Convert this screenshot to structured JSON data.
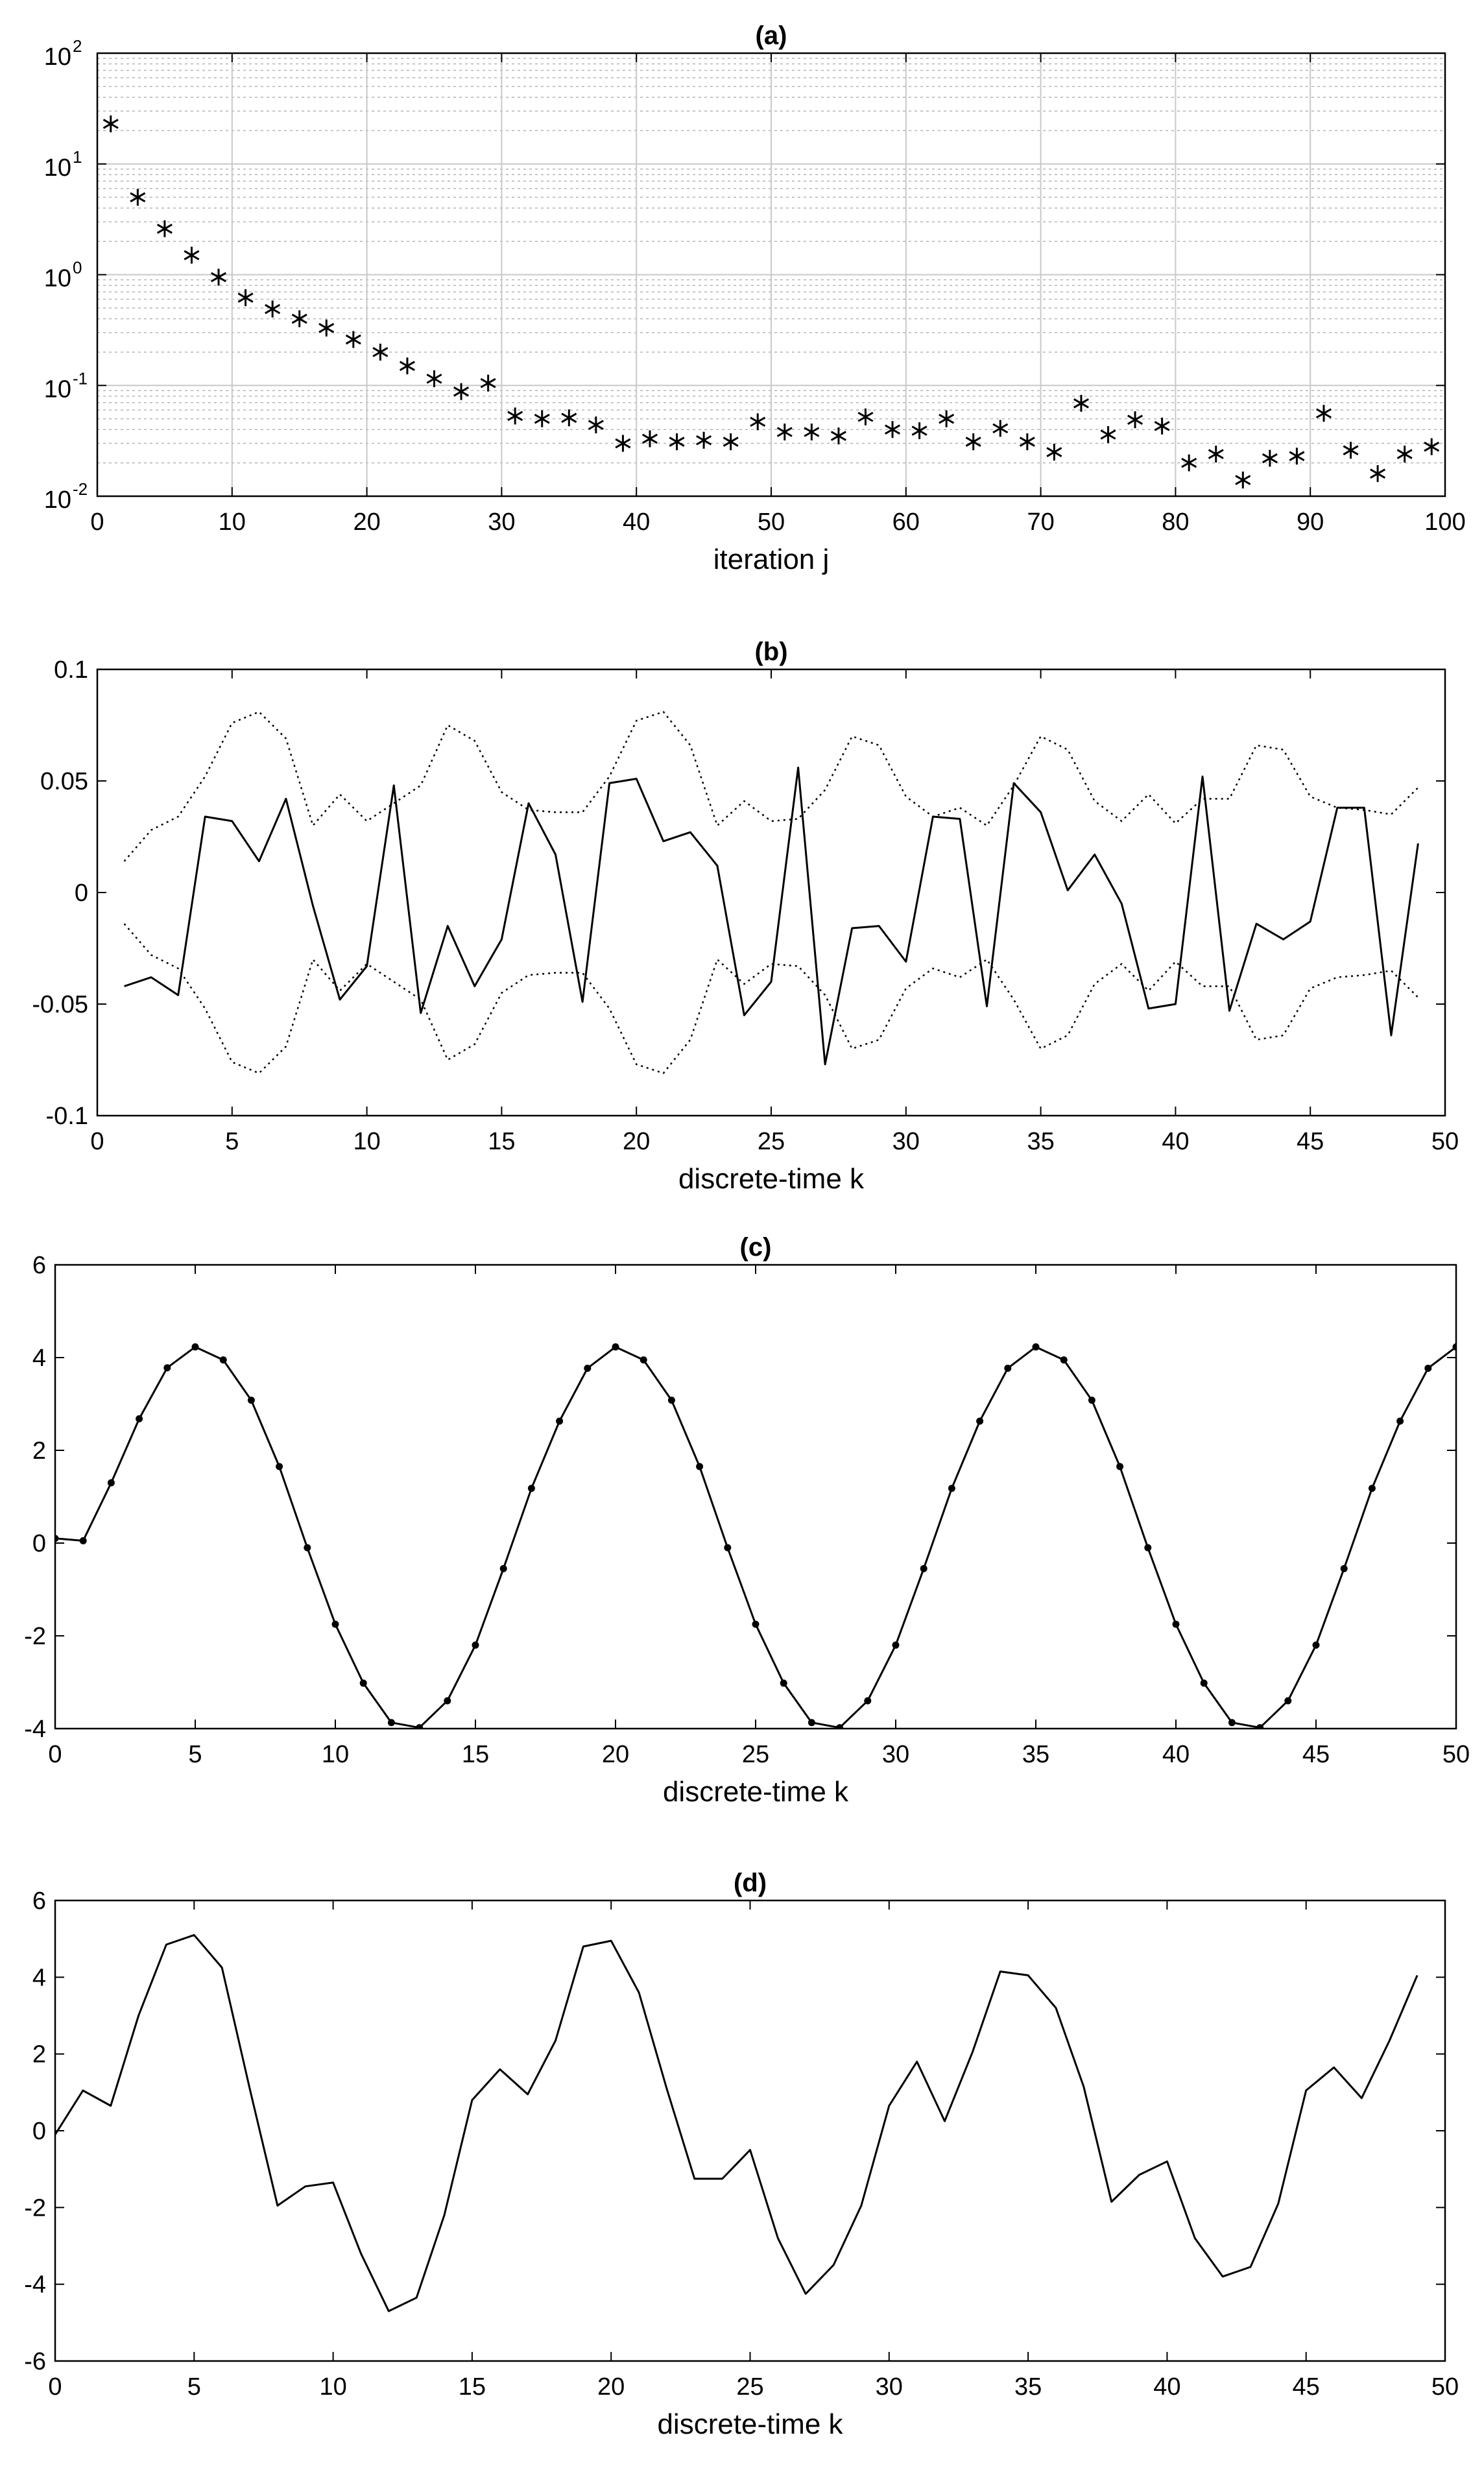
{
  "chart_data": [
    {
      "type": "scatter",
      "title": "(a)",
      "xlabel": "iteration j",
      "ylabel": "",
      "xlim": [
        0,
        100
      ],
      "ylim": [
        0.01,
        100
      ],
      "yscale": "log",
      "grid": true,
      "marker": "*",
      "xticks": [
        "0",
        "10",
        "20",
        "30",
        "40",
        "50",
        "60",
        "70",
        "80",
        "90",
        "100"
      ],
      "yticks": [
        {
          "base": "10",
          "exp": "-2"
        },
        {
          "base": "10",
          "exp": "-1"
        },
        {
          "base": "10",
          "exp": "0"
        },
        {
          "base": "10",
          "exp": "1"
        },
        {
          "base": "10",
          "exp": "2"
        }
      ],
      "x": [
        1,
        3,
        5,
        7,
        9,
        11,
        13,
        15,
        17,
        19,
        21,
        23,
        25,
        27,
        29,
        31,
        33,
        35,
        37,
        39,
        41,
        43,
        45,
        47,
        49,
        51,
        53,
        55,
        57,
        59,
        61,
        63,
        65,
        67,
        69,
        71,
        73,
        75,
        77,
        79,
        81,
        83,
        85,
        87,
        89,
        91,
        93,
        95,
        97,
        99
      ],
      "y": [
        23,
        5,
        2.6,
        1.5,
        0.95,
        0.62,
        0.49,
        0.4,
        0.33,
        0.26,
        0.2,
        0.15,
        0.115,
        0.088,
        0.105,
        0.053,
        0.05,
        0.051,
        0.044,
        0.03,
        0.033,
        0.031,
        0.032,
        0.031,
        0.047,
        0.038,
        0.038,
        0.035,
        0.052,
        0.04,
        0.039,
        0.05,
        0.031,
        0.041,
        0.031,
        0.025,
        0.069,
        0.036,
        0.049,
        0.043,
        0.02,
        0.024,
        0.014,
        0.022,
        0.023,
        0.056,
        0.026,
        0.016,
        0.024,
        0.028
      ]
    },
    {
      "type": "line",
      "title": "(b)",
      "xlabel": "discrete-time k",
      "ylabel": "",
      "xlim": [
        0,
        50
      ],
      "ylim": [
        -0.1,
        0.1
      ],
      "grid": false,
      "xticks": [
        "0",
        "5",
        "10",
        "15",
        "20",
        "25",
        "30",
        "35",
        "40",
        "45",
        "50"
      ],
      "yticks": [
        "-0.1",
        "-0.05",
        "0",
        "0.05",
        "0.1"
      ],
      "x": [
        1,
        2,
        3,
        4,
        5,
        6,
        7,
        8,
        9,
        10,
        11,
        12,
        13,
        14,
        15,
        16,
        17,
        18,
        19,
        20,
        21,
        22,
        23,
        24,
        25,
        26,
        27,
        28,
        29,
        30,
        31,
        32,
        33,
        34,
        35,
        36,
        37,
        38,
        39,
        40,
        41,
        42,
        43,
        44,
        45,
        46,
        47,
        48,
        49
      ],
      "series": [
        {
          "style": "solid",
          "values": [
            -0.042,
            -0.038,
            -0.046,
            0.034,
            0.032,
            0.014,
            0.042,
            -0.006,
            -0.048,
            -0.033,
            0.048,
            -0.054,
            -0.015,
            -0.042,
            -0.021,
            0.04,
            0.017,
            -0.049,
            0.049,
            0.051,
            0.023,
            0.027,
            0.012,
            -0.055,
            -0.04,
            0.056,
            -0.077,
            -0.016,
            -0.015,
            -0.031,
            0.034,
            0.033,
            -0.051,
            0.049,
            0.036,
            0.001,
            0.017,
            -0.005,
            -0.052,
            -0.05,
            0.052,
            -0.053,
            -0.014,
            -0.021,
            -0.013,
            0.038,
            0.038,
            -0.064,
            0.022
          ]
        },
        {
          "style": "dotted",
          "values": [
            0.014,
            0.028,
            0.034,
            0.052,
            0.076,
            0.081,
            0.069,
            0.03,
            0.044,
            0.032,
            0.04,
            0.048,
            0.075,
            0.068,
            0.045,
            0.037,
            0.036,
            0.036,
            0.052,
            0.077,
            0.081,
            0.066,
            0.03,
            0.041,
            0.032,
            0.033,
            0.046,
            0.07,
            0.066,
            0.043,
            0.034,
            0.038,
            0.03,
            0.048,
            0.07,
            0.064,
            0.041,
            0.032,
            0.044,
            0.031,
            0.042,
            0.042,
            0.066,
            0.064,
            0.043,
            0.038,
            0.037,
            0.035,
            0.047
          ]
        },
        {
          "style": "dotted",
          "values": [
            -0.014,
            -0.028,
            -0.034,
            -0.052,
            -0.076,
            -0.081,
            -0.069,
            -0.03,
            -0.044,
            -0.032,
            -0.04,
            -0.048,
            -0.075,
            -0.068,
            -0.045,
            -0.037,
            -0.036,
            -0.036,
            -0.052,
            -0.077,
            -0.081,
            -0.066,
            -0.03,
            -0.041,
            -0.032,
            -0.033,
            -0.046,
            -0.07,
            -0.066,
            -0.043,
            -0.034,
            -0.038,
            -0.03,
            -0.048,
            -0.07,
            -0.064,
            -0.041,
            -0.032,
            -0.044,
            -0.031,
            -0.042,
            -0.042,
            -0.066,
            -0.064,
            -0.043,
            -0.038,
            -0.037,
            -0.035,
            -0.047
          ]
        }
      ]
    },
    {
      "type": "line",
      "title": "(c)",
      "xlabel": "discrete-time k",
      "ylabel": "",
      "xlim": [
        0,
        50
      ],
      "ylim": [
        -4,
        6
      ],
      "grid": false,
      "xticks": [
        "0",
        "5",
        "10",
        "15",
        "20",
        "25",
        "30",
        "35",
        "40",
        "45",
        "50"
      ],
      "yticks": [
        "-4",
        "-2",
        "0",
        "2",
        "4",
        "6"
      ],
      "x": [
        0,
        1,
        2,
        3,
        4,
        5,
        6,
        7,
        8,
        9,
        10,
        11,
        12,
        13,
        14,
        15,
        16,
        17,
        18,
        19,
        20,
        21,
        22,
        23,
        24,
        25,
        26,
        27,
        28,
        29,
        30,
        31,
        32,
        33,
        34,
        35,
        36,
        37,
        38,
        39,
        40,
        41,
        42,
        43,
        44,
        45,
        46,
        47,
        48,
        49,
        50
      ],
      "series": [
        {
          "style": "solid-dots",
          "values": [
            0.1,
            0.05,
            1.3,
            2.68,
            3.78,
            4.23,
            3.95,
            3.08,
            1.65,
            -0.1,
            -1.75,
            -3.02,
            -3.87,
            -3.98,
            -3.4,
            -2.2,
            -0.55,
            1.18,
            2.63,
            3.77,
            4.23,
            3.95,
            3.08,
            1.65,
            -0.1,
            -1.75,
            -3.02,
            -3.87,
            -3.98,
            -3.4,
            -2.2,
            -0.55,
            1.18,
            2.63,
            3.77,
            4.23,
            3.95,
            3.08,
            1.65,
            -0.1,
            -1.75,
            -3.02,
            -3.87,
            -3.98,
            -3.4,
            -2.2,
            -0.55,
            1.18,
            2.63,
            3.77,
            4.23
          ]
        },
        {
          "style": "dotted",
          "values": [
            0.1,
            0.05,
            1.3,
            2.68,
            3.78,
            4.23,
            3.95,
            3.08,
            1.65,
            -0.1,
            -1.75,
            -3.02,
            -3.87,
            -3.98,
            -3.4,
            -2.2,
            -0.55,
            1.18,
            2.63,
            3.77,
            4.23,
            3.95,
            3.08,
            1.65,
            -0.1,
            -1.75,
            -3.02,
            -3.87,
            -3.98,
            -3.4,
            -2.2,
            -0.55,
            1.18,
            2.63,
            3.77,
            4.23,
            3.95,
            3.08,
            1.65,
            -0.1,
            -1.75,
            -3.02,
            -3.87,
            -3.98,
            -3.4,
            -2.2,
            -0.55,
            1.18,
            2.63,
            3.77,
            4.23
          ]
        }
      ]
    },
    {
      "type": "line",
      "title": "(d)",
      "xlabel": "discrete-time k",
      "ylabel": "",
      "xlim": [
        0,
        50
      ],
      "ylim": [
        -6,
        6
      ],
      "grid": false,
      "xticks": [
        "0",
        "5",
        "10",
        "15",
        "20",
        "25",
        "30",
        "35",
        "40",
        "45",
        "50"
      ],
      "yticks": [
        "-6",
        "-4",
        "-2",
        "0",
        "2",
        "4",
        "6"
      ],
      "x": [
        0,
        1,
        2,
        3,
        4,
        5,
        6,
        7,
        8,
        9,
        10,
        11,
        12,
        13,
        14,
        15,
        16,
        17,
        18,
        19,
        20,
        21,
        22,
        23,
        24,
        25,
        26,
        27,
        28,
        29,
        30,
        31,
        32,
        33,
        34,
        35,
        36,
        37,
        38,
        39,
        40,
        41,
        42,
        43,
        44,
        45,
        46,
        47,
        48,
        49
      ],
      "series": [
        {
          "style": "solid",
          "values": [
            -0.1,
            1.05,
            0.65,
            3.0,
            4.85,
            5.1,
            4.25,
            1.1,
            -1.95,
            -1.45,
            -1.35,
            -3.2,
            -4.7,
            -4.35,
            -2.2,
            0.8,
            1.6,
            0.95,
            2.35,
            4.8,
            4.95,
            3.6,
            1.1,
            -1.25,
            -1.25,
            -0.5,
            -2.8,
            -4.25,
            -3.5,
            -1.95,
            0.65,
            1.8,
            0.25,
            2.05,
            4.15,
            4.05,
            3.2,
            1.15,
            -1.85,
            -1.15,
            -0.8,
            -2.8,
            -3.8,
            -3.55,
            -1.9,
            1.05,
            1.65,
            0.85,
            2.35,
            4.05
          ]
        }
      ]
    }
  ]
}
